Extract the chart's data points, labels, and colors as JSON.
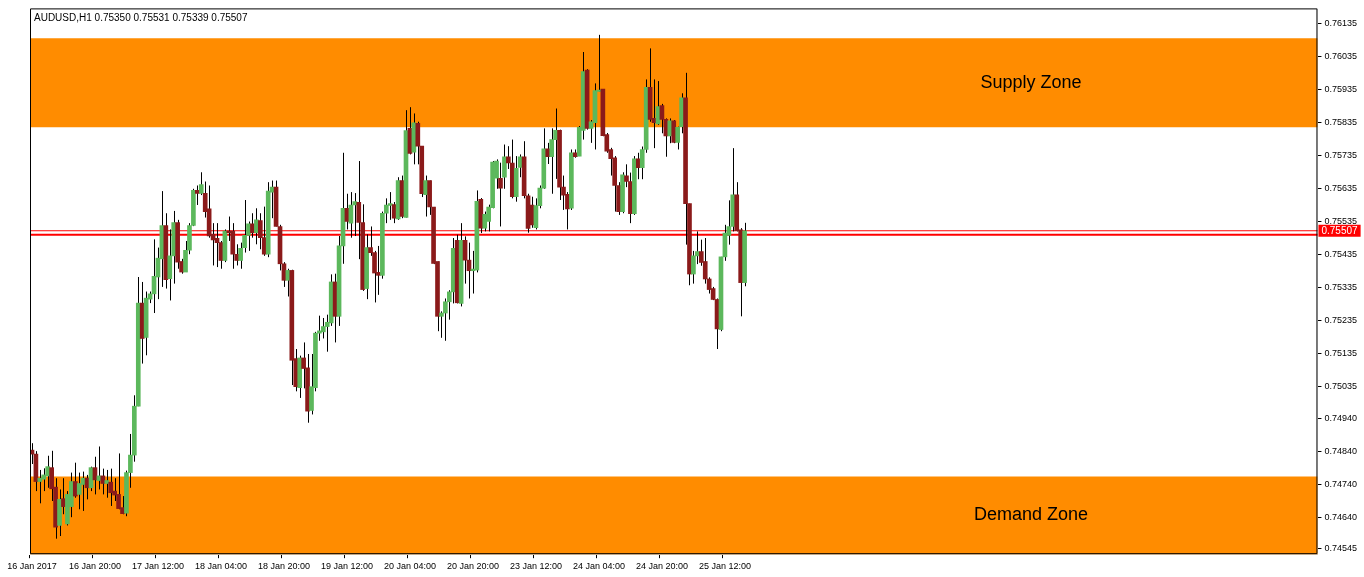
{
  "chart_data": {
    "type": "candlestick",
    "title": "AUDUSD,H1 0.75350 0.75531 0.75339 0.75507",
    "categories": [
      "16 Jan 2017",
      null,
      null,
      null,
      null,
      null,
      null,
      null,
      null,
      null,
      null,
      null,
      null,
      null,
      null,
      null,
      "16 Jan 20:00",
      null,
      null,
      null,
      null,
      null,
      null,
      null,
      null,
      null,
      null,
      null,
      null,
      null,
      null,
      null,
      "17 Jan 12:00",
      null,
      null,
      null,
      null,
      null,
      null,
      null,
      null,
      null,
      null,
      null,
      null,
      null,
      null,
      null,
      "18 Jan 04:00",
      null,
      null,
      null,
      null,
      null,
      null,
      null,
      null,
      null,
      null,
      null,
      null,
      null,
      null,
      null,
      "18 Jan 20:00",
      null,
      null,
      null,
      null,
      null,
      null,
      null,
      null,
      null,
      null,
      null,
      null,
      null,
      null,
      null,
      "19 Jan 12:00",
      null,
      null,
      null,
      null,
      null,
      null,
      null,
      null,
      null,
      null,
      null,
      null,
      null,
      null,
      null,
      "20 Jan 04:00",
      null,
      null,
      null,
      null,
      null,
      null,
      null,
      null,
      null,
      null,
      null,
      null,
      null,
      null,
      null,
      "20 Jan 20:00",
      null,
      null,
      null,
      null,
      null,
      null,
      null,
      null,
      null,
      null,
      null,
      null,
      null,
      null,
      null,
      "23 Jan 12:00",
      null,
      null,
      null,
      null,
      null,
      null,
      null,
      null,
      null,
      null,
      null,
      null,
      null,
      null,
      null,
      "24 Jan 04:00",
      null,
      null,
      null,
      null,
      null,
      null,
      null,
      null,
      null,
      null,
      null,
      null,
      null,
      null,
      null,
      "24 Jan 20:00",
      null,
      null,
      null,
      null,
      null,
      null,
      null,
      null,
      null,
      null,
      null,
      null,
      null,
      null,
      null,
      "25 Jan 12:00",
      null,
      null,
      null,
      null,
      null,
      null,
      null,
      null,
      null,
      null,
      null,
      null,
      null,
      null,
      null,
      null,
      null,
      null,
      null,
      null,
      null,
      null,
      null,
      null,
      null,
      null,
      null,
      null,
      null,
      null,
      null,
      null,
      null,
      null,
      null,
      null,
      null,
      null,
      null,
      null,
      null,
      null,
      null,
      null,
      null,
      null,
      null,
      null,
      null,
      null,
      null,
      null,
      null,
      null,
      null,
      null,
      null,
      null,
      null,
      null,
      null,
      null,
      null,
      null,
      null,
      null,
      null,
      null,
      null,
      null,
      null,
      null,
      null,
      null,
      null,
      null,
      null,
      null,
      null,
      null,
      null,
      null,
      null,
      null,
      null,
      null,
      null,
      null,
      null,
      null,
      null,
      null,
      null,
      null,
      null,
      null,
      null,
      null,
      null,
      null,
      null,
      null,
      null,
      null,
      null,
      null,
      null,
      null,
      null,
      null,
      null,
      null,
      null,
      null,
      null,
      null,
      null,
      null,
      null,
      null,
      null,
      null,
      null,
      null,
      null,
      null,
      null,
      null,
      null,
      null,
      null,
      null,
      null,
      null,
      null,
      null,
      null,
      null,
      null,
      null,
      null,
      null,
      null,
      null,
      null,
      null,
      null,
      null,
      null,
      null
    ],
    "ohlc": [
      [
        0.74843,
        0.74864,
        0.74801,
        0.74831
      ],
      [
        0.74831,
        0.7484,
        0.74719,
        0.74748
      ],
      [
        0.74748,
        0.74783,
        0.74682,
        0.74758
      ],
      [
        0.74755,
        0.74788,
        0.74719,
        0.74768
      ],
      [
        0.74765,
        0.74826,
        0.74729,
        0.74793
      ],
      [
        0.7479,
        0.74841,
        0.74689,
        0.74726
      ],
      [
        0.74731,
        0.74758,
        0.74575,
        0.7461
      ],
      [
        0.74615,
        0.74724,
        0.74583,
        0.74694
      ],
      [
        0.74696,
        0.74758,
        0.74649,
        0.74672
      ],
      [
        0.7462,
        0.74719,
        0.74615,
        0.74709
      ],
      [
        0.74672,
        0.74775,
        0.7464,
        0.74748
      ],
      [
        0.74748,
        0.74805,
        0.74699,
        0.74704
      ],
      [
        0.74709,
        0.74775,
        0.74664,
        0.74742
      ],
      [
        0.74739,
        0.74778,
        0.74659,
        0.74758
      ],
      [
        0.74758,
        0.74768,
        0.74694,
        0.74729
      ],
      [
        0.74729,
        0.74793,
        0.74719,
        0.7479
      ],
      [
        0.7479,
        0.74823,
        0.74709,
        0.74753
      ],
      [
        0.74751,
        0.74854,
        0.74724,
        0.74765
      ],
      [
        0.74765,
        0.74787,
        0.74709,
        0.74742
      ],
      [
        0.74742,
        0.74783,
        0.74699,
        0.74751
      ],
      [
        0.74746,
        0.74787,
        0.74674,
        0.74714
      ],
      [
        0.74719,
        0.74758,
        0.74689,
        0.74707
      ],
      [
        0.74709,
        0.74833,
        0.74664,
        0.74666
      ],
      [
        0.74669,
        0.74704,
        0.74649,
        0.74651
      ],
      [
        0.74652,
        0.74781,
        0.74643,
        0.74775
      ],
      [
        0.74775,
        0.74892,
        0.74729,
        0.74828
      ],
      [
        0.74828,
        0.75009,
        0.74808,
        0.74976
      ],
      [
        0.74976,
        0.75367,
        0.74976,
        0.75288
      ],
      [
        0.75288,
        0.75352,
        0.75105,
        0.75181
      ],
      [
        0.75184,
        0.75323,
        0.7513,
        0.75303
      ],
      [
        0.753,
        0.75323,
        0.75288,
        0.75316
      ],
      [
        0.75316,
        0.75481,
        0.75258,
        0.75369
      ],
      [
        0.75367,
        0.75456,
        0.753,
        0.75424
      ],
      [
        0.75422,
        0.75627,
        0.75337,
        0.75523
      ],
      [
        0.75523,
        0.7556,
        0.75332,
        0.75359
      ],
      [
        0.75362,
        0.75511,
        0.75296,
        0.75431
      ],
      [
        0.75431,
        0.75567,
        0.75347,
        0.75532
      ],
      [
        0.75532,
        0.7554,
        0.75392,
        0.75412
      ],
      [
        0.75414,
        0.75422,
        0.75377,
        0.75382
      ],
      [
        0.75382,
        0.75476,
        0.75382,
        0.75448
      ],
      [
        0.75448,
        0.7553,
        0.75436,
        0.75523
      ],
      [
        0.75523,
        0.75634,
        0.75521,
        0.75629
      ],
      [
        0.75629,
        0.75644,
        0.75585,
        0.7562
      ],
      [
        0.7562,
        0.75684,
        0.75615,
        0.75647
      ],
      [
        0.7562,
        0.75656,
        0.75547,
        0.75565
      ],
      [
        0.75573,
        0.75644,
        0.75486,
        0.75491
      ],
      [
        0.75496,
        0.7553,
        0.75402,
        0.75479
      ],
      [
        0.75484,
        0.7553,
        0.75397,
        0.75471
      ],
      [
        0.75471,
        0.75476,
        0.75392,
        0.75417
      ],
      [
        0.75417,
        0.75511,
        0.75412,
        0.75506
      ],
      [
        0.75506,
        0.7555,
        0.75476,
        0.75501
      ],
      [
        0.75506,
        0.7553,
        0.75392,
        0.75436
      ],
      [
        0.75436,
        0.75466,
        0.75402,
        0.75417
      ],
      [
        0.75417,
        0.75471,
        0.75392,
        0.75454
      ],
      [
        0.75456,
        0.756,
        0.75441,
        0.75493
      ],
      [
        0.75493,
        0.75535,
        0.75446,
        0.75528
      ],
      [
        0.75528,
        0.7556,
        0.75486,
        0.75501
      ],
      [
        0.75501,
        0.75575,
        0.75466,
        0.7554
      ],
      [
        0.75538,
        0.7556,
        0.75451,
        0.75486
      ],
      [
        0.75486,
        0.7558,
        0.75431,
        0.75436
      ],
      [
        0.75436,
        0.75654,
        0.75427,
        0.75627
      ],
      [
        0.75624,
        0.75659,
        0.75545,
        0.75639
      ],
      [
        0.75639,
        0.75659,
        0.7552,
        0.7552
      ],
      [
        0.7552,
        0.75525,
        0.75387,
        0.75407
      ],
      [
        0.75407,
        0.75412,
        0.75337,
        0.75357
      ],
      [
        0.75357,
        0.75392,
        0.75308,
        0.75387
      ],
      [
        0.75387,
        0.75389,
        0.7504,
        0.75115
      ],
      [
        0.7512,
        0.75149,
        0.75021,
        0.75035
      ],
      [
        0.75032,
        0.75129,
        0.75001,
        0.75122
      ],
      [
        0.75122,
        0.75169,
        0.7503,
        0.7509
      ],
      [
        0.75092,
        0.75134,
        0.74926,
        0.74961
      ],
      [
        0.74963,
        0.75134,
        0.74951,
        0.75035
      ],
      [
        0.75032,
        0.75201,
        0.75021,
        0.75197
      ],
      [
        0.75197,
        0.7525,
        0.75174,
        0.75204
      ],
      [
        0.75201,
        0.75243,
        0.75181,
        0.75217
      ],
      [
        0.75217,
        0.75253,
        0.75141,
        0.7523
      ],
      [
        0.75228,
        0.75375,
        0.75219,
        0.75352
      ],
      [
        0.75352,
        0.75377,
        0.75169,
        0.75248
      ],
      [
        0.75248,
        0.75491,
        0.75219,
        0.75461
      ],
      [
        0.75461,
        0.75743,
        0.75407,
        0.75575
      ],
      [
        0.75575,
        0.75619,
        0.75511,
        0.75535
      ],
      [
        0.7553,
        0.75624,
        0.75486,
        0.75585
      ],
      [
        0.75585,
        0.75621,
        0.75491,
        0.75595
      ],
      [
        0.75593,
        0.75718,
        0.75421,
        0.75532
      ],
      [
        0.75532,
        0.75587,
        0.75325,
        0.75329
      ],
      [
        0.75332,
        0.75496,
        0.753,
        0.75456
      ],
      [
        0.75456,
        0.7552,
        0.75431,
        0.75441
      ],
      [
        0.75441,
        0.75446,
        0.7529,
        0.75379
      ],
      [
        0.75381,
        0.75461,
        0.75313,
        0.75372
      ],
      [
        0.75372,
        0.75565,
        0.75362,
        0.7556
      ],
      [
        0.7556,
        0.75605,
        0.7553,
        0.75585
      ],
      [
        0.75584,
        0.75624,
        0.7554,
        0.75589
      ],
      [
        0.75586,
        0.75594,
        0.7553,
        0.75545
      ],
      [
        0.75543,
        0.75669,
        0.7554,
        0.75659
      ],
      [
        0.75659,
        0.75674,
        0.75545,
        0.7555
      ],
      [
        0.75547,
        0.75872,
        0.75547,
        0.7581
      ],
      [
        0.75817,
        0.75881,
        0.75738,
        0.75741
      ],
      [
        0.75745,
        0.75862,
        0.75708,
        0.75834
      ],
      [
        0.75832,
        0.75837,
        0.75708,
        0.75763
      ],
      [
        0.75763,
        0.75763,
        0.75609,
        0.75619
      ],
      [
        0.75616,
        0.75674,
        0.7555,
        0.75659
      ],
      [
        0.75659,
        0.75659,
        0.75555,
        0.75579
      ],
      [
        0.75579,
        0.75579,
        0.75406,
        0.75408
      ],
      [
        0.75414,
        0.75414,
        0.75203,
        0.75248
      ],
      [
        0.75248,
        0.75263,
        0.75183,
        0.75258
      ],
      [
        0.75258,
        0.75302,
        0.75174,
        0.75292
      ],
      [
        0.75292,
        0.75327,
        0.75238,
        0.75322
      ],
      [
        0.75322,
        0.75485,
        0.75287,
        0.75454
      ],
      [
        0.75478,
        0.75495,
        0.75287,
        0.75289
      ],
      [
        0.75287,
        0.7553,
        0.75278,
        0.75478
      ],
      [
        0.75478,
        0.7549,
        0.75347,
        0.75418
      ],
      [
        0.75418,
        0.75471,
        0.75302,
        0.75386
      ],
      [
        0.75386,
        0.75446,
        0.75317,
        0.75391
      ],
      [
        0.75388,
        0.75629,
        0.75381,
        0.75596
      ],
      [
        0.75602,
        0.75606,
        0.755,
        0.75515
      ],
      [
        0.75515,
        0.75565,
        0.75505,
        0.75557
      ],
      [
        0.75535,
        0.75586,
        0.75505,
        0.75579
      ],
      [
        0.75577,
        0.75718,
        0.75575,
        0.75715
      ],
      [
        0.75666,
        0.75723,
        0.75634,
        0.75718
      ],
      [
        0.75666,
        0.75713,
        0.7552,
        0.75636
      ],
      [
        0.75669,
        0.75768,
        0.75634,
        0.75731
      ],
      [
        0.75731,
        0.75763,
        0.75694,
        0.75712
      ],
      [
        0.75712,
        0.75783,
        0.75605,
        0.7561
      ],
      [
        0.7561,
        0.75733,
        0.75595,
        0.75696
      ],
      [
        0.75699,
        0.75738,
        0.75669,
        0.75731
      ],
      [
        0.75731,
        0.75778,
        0.75605,
        0.75613
      ],
      [
        0.75613,
        0.75619,
        0.75501,
        0.75514
      ],
      [
        0.75585,
        0.7561,
        0.75516,
        0.75525
      ],
      [
        0.75516,
        0.75605,
        0.75511,
        0.75583
      ],
      [
        0.75583,
        0.75644,
        0.75575,
        0.75636
      ],
      [
        0.75636,
        0.75817,
        0.75634,
        0.75755
      ],
      [
        0.75755,
        0.75773,
        0.75709,
        0.75731
      ],
      [
        0.75731,
        0.75817,
        0.75619,
        0.75783
      ],
      [
        0.75783,
        0.75877,
        0.75664,
        0.75811
      ],
      [
        0.75811,
        0.75813,
        0.756,
        0.75639
      ],
      [
        0.75639,
        0.75674,
        0.7557,
        0.75615
      ],
      [
        0.75617,
        0.75624,
        0.75511,
        0.75573
      ],
      [
        0.75575,
        0.75753,
        0.7557,
        0.75743
      ],
      [
        0.75743,
        0.75753,
        0.75728,
        0.75731
      ],
      [
        0.75733,
        0.75824,
        0.75733,
        0.7582
      ],
      [
        0.75811,
        0.76048,
        0.75783,
        0.75989
      ],
      [
        0.75993,
        0.75996,
        0.75813,
        0.75817
      ],
      [
        0.75817,
        0.75842,
        0.75773,
        0.75837
      ],
      [
        0.75834,
        0.75953,
        0.75753,
        0.75931
      ],
      [
        0.75929,
        0.761,
        0.75929,
        0.75933
      ],
      [
        0.75936,
        0.75936,
        0.75793,
        0.75795
      ],
      [
        0.75798,
        0.75803,
        0.75743,
        0.75748
      ],
      [
        0.75753,
        0.75758,
        0.75674,
        0.75725
      ],
      [
        0.75728,
        0.75733,
        0.75565,
        0.75644
      ],
      [
        0.75644,
        0.75654,
        0.75555,
        0.75565
      ],
      [
        0.75565,
        0.75684,
        0.7556,
        0.75676
      ],
      [
        0.75673,
        0.75708,
        0.75639,
        0.75656
      ],
      [
        0.75656,
        0.75683,
        0.7553,
        0.75559
      ],
      [
        0.75559,
        0.75733,
        0.75555,
        0.75725
      ],
      [
        0.75725,
        0.75743,
        0.75663,
        0.75698
      ],
      [
        0.75698,
        0.75762,
        0.75663,
        0.75753
      ],
      [
        0.75753,
        0.75965,
        0.75743,
        0.75941
      ],
      [
        0.75941,
        0.76059,
        0.75837,
        0.75844
      ],
      [
        0.75847,
        0.75965,
        0.75757,
        0.75834
      ],
      [
        0.7583,
        0.7596,
        0.75827,
        0.75883
      ],
      [
        0.75886,
        0.75891,
        0.75802,
        0.75844
      ],
      [
        0.75844,
        0.75847,
        0.75731,
        0.75794
      ],
      [
        0.75794,
        0.75847,
        0.75772,
        0.7584
      ],
      [
        0.7584,
        0.75842,
        0.75772,
        0.75774
      ],
      [
        0.75774,
        0.75822,
        0.75753,
        0.7582
      ],
      [
        0.75822,
        0.75923,
        0.75802,
        0.75909
      ],
      [
        0.75909,
        0.75985,
        0.75465,
        0.75589
      ],
      [
        0.75589,
        0.75589,
        0.75342,
        0.75376
      ],
      [
        0.75376,
        0.75446,
        0.75347,
        0.75431
      ],
      [
        0.75431,
        0.75505,
        0.75406,
        0.75444
      ],
      [
        0.75444,
        0.7548,
        0.75401,
        0.75411
      ],
      [
        0.75414,
        0.75485,
        0.75347,
        0.75361
      ],
      [
        0.75361,
        0.75366,
        0.75317,
        0.75329
      ],
      [
        0.75332,
        0.75337,
        0.75297,
        0.75299
      ],
      [
        0.75299,
        0.75302,
        0.75149,
        0.7521
      ],
      [
        0.75208,
        0.75428,
        0.75203,
        0.75428
      ],
      [
        0.75428,
        0.75525,
        0.75416,
        0.755
      ],
      [
        0.75493,
        0.75599,
        0.75465,
        0.7552
      ],
      [
        0.7552,
        0.75757,
        0.75505,
        0.75616
      ],
      [
        0.75616,
        0.75654,
        0.75505,
        0.75507
      ],
      [
        0.7551,
        0.75515,
        0.75248,
        0.7535
      ],
      [
        0.7535,
        0.75531,
        0.75339,
        0.75507
      ],
      null,
      null,
      null,
      null,
      null,
      null,
      null,
      null,
      null,
      null,
      null,
      null,
      null,
      null,
      null,
      null,
      null,
      null,
      null,
      null,
      null,
      null,
      null,
      null,
      null,
      null,
      null,
      null,
      null,
      null,
      null,
      null,
      null,
      null,
      null,
      null,
      null,
      null,
      null,
      null,
      null,
      null,
      null,
      null,
      null,
      null,
      null,
      null,
      null,
      null,
      null,
      null,
      null,
      null,
      null,
      null,
      null,
      null,
      null,
      null,
      null,
      null,
      null,
      null,
      null,
      null,
      null,
      null,
      null,
      null,
      null,
      null,
      null,
      null,
      null,
      null,
      null,
      null,
      null,
      null,
      null,
      null,
      null,
      null,
      null,
      null,
      null,
      null,
      null,
      null,
      null,
      null,
      null,
      null,
      null,
      null,
      null,
      null,
      null,
      null,
      null,
      null,
      null,
      null,
      null,
      null,
      null,
      null,
      null,
      null,
      null,
      null,
      null,
      null,
      null,
      null,
      null,
      null,
      null,
      null,
      null,
      null,
      null,
      null,
      null,
      null,
      null,
      null,
      null,
      null,
      null,
      null,
      null,
      null,
      null,
      null,
      null,
      null,
      null,
      null,
      null,
      null,
      null,
      null,
      null
    ],
    "ylim": [
      0.74528,
      0.7618
    ],
    "yticks": [
      0.76135,
      0.76035,
      0.75935,
      0.75835,
      0.75735,
      0.75635,
      0.75535,
      0.75435,
      0.75335,
      0.75235,
      0.75135,
      0.75035,
      {
        "value": 0.7494,
        "label": "0.74940"
      },
      {
        "value": 0.7484,
        "label": "0.74840"
      },
      {
        "value": 0.7474,
        "label": "0.74740"
      },
      {
        "value": 0.7464,
        "label": "0.74640"
      },
      0.74545
    ],
    "bands": [
      {
        "axis": "y",
        "from": 0.7582,
        "to": 0.7609,
        "label": "Supply Zone",
        "color": "#ff8c00"
      },
      {
        "axis": "y",
        "from": 0.74528,
        "to": 0.74763,
        "label": "Demand Zone",
        "color": "#ff8c00"
      }
    ],
    "ref_lines": [
      {
        "axis": "y",
        "value": 0.75507,
        "label": "0.75507",
        "color": "#ff0000"
      },
      {
        "axis": "y",
        "value": 0.75495,
        "color": "#ff0000"
      }
    ]
  }
}
